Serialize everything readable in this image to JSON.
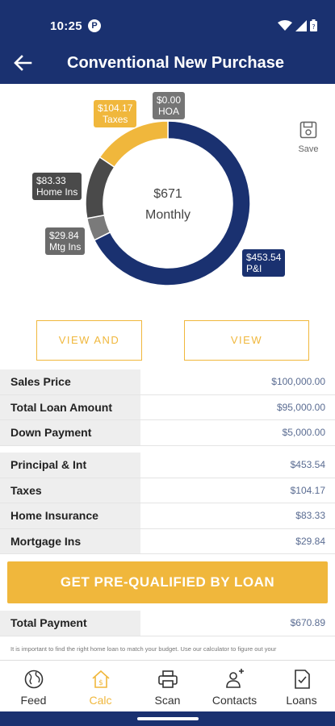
{
  "status_bar": {
    "time": "10:25",
    "notification_letter": "P"
  },
  "header": {
    "title": "Conventional New Purchase"
  },
  "chart_data": {
    "type": "donut",
    "center": {
      "amount": "$671",
      "label": "Monthly"
    },
    "slices": [
      {
        "label": "P&I",
        "amount": "$453.54",
        "value": 453.54,
        "color": "#1a3170"
      },
      {
        "label": "Mtg Ins",
        "amount": "$29.84",
        "value": 29.84,
        "color": "#7a7a7a"
      },
      {
        "label": "Home Ins",
        "amount": "$83.33",
        "value": 83.33,
        "color": "#4a4a4a"
      },
      {
        "label": "Taxes",
        "amount": "$104.17",
        "value": 104.17,
        "color": "#f0b73c"
      },
      {
        "label": "HOA",
        "amount": "$0.00",
        "value": 0,
        "color": "#757575"
      }
    ]
  },
  "save": {
    "label": "Save"
  },
  "buttons": {
    "share": "VIEW AND SHARE",
    "amortization": "VIEW AMORTIZATION",
    "prequalify": "GET PRE-QUALIFIED BY LOAN"
  },
  "loan_table": [
    {
      "label": "Sales Price",
      "value": "$100,000.00"
    },
    {
      "label": "Total Loan Amount",
      "value": "$95,000.00"
    },
    {
      "label": "Down Payment",
      "value": "$5,000.00"
    }
  ],
  "payment_table": [
    {
      "label": "Principal & Int",
      "value": "$453.54"
    },
    {
      "label": "Taxes",
      "value": "$104.17"
    },
    {
      "label": "Home Insurance",
      "value": "$83.33"
    },
    {
      "label": "Mortgage Ins",
      "value": "$29.84"
    }
  ],
  "total": {
    "label": "Total Payment",
    "value": "$670.89"
  },
  "disclaimer": "It is important to find the right home loan to match your budget. Use our calculator to figure out your",
  "nav": [
    {
      "label": "Feed",
      "icon": "globe-icon"
    },
    {
      "label": "Calc",
      "icon": "calculator-home-icon"
    },
    {
      "label": "Scan",
      "icon": "printer-scan-icon"
    },
    {
      "label": "Contacts",
      "icon": "contacts-icon"
    },
    {
      "label": "Loans",
      "icon": "document-check-icon"
    }
  ],
  "colors": {
    "brand_navy": "#1a3170",
    "accent_gold": "#f0b73c"
  }
}
